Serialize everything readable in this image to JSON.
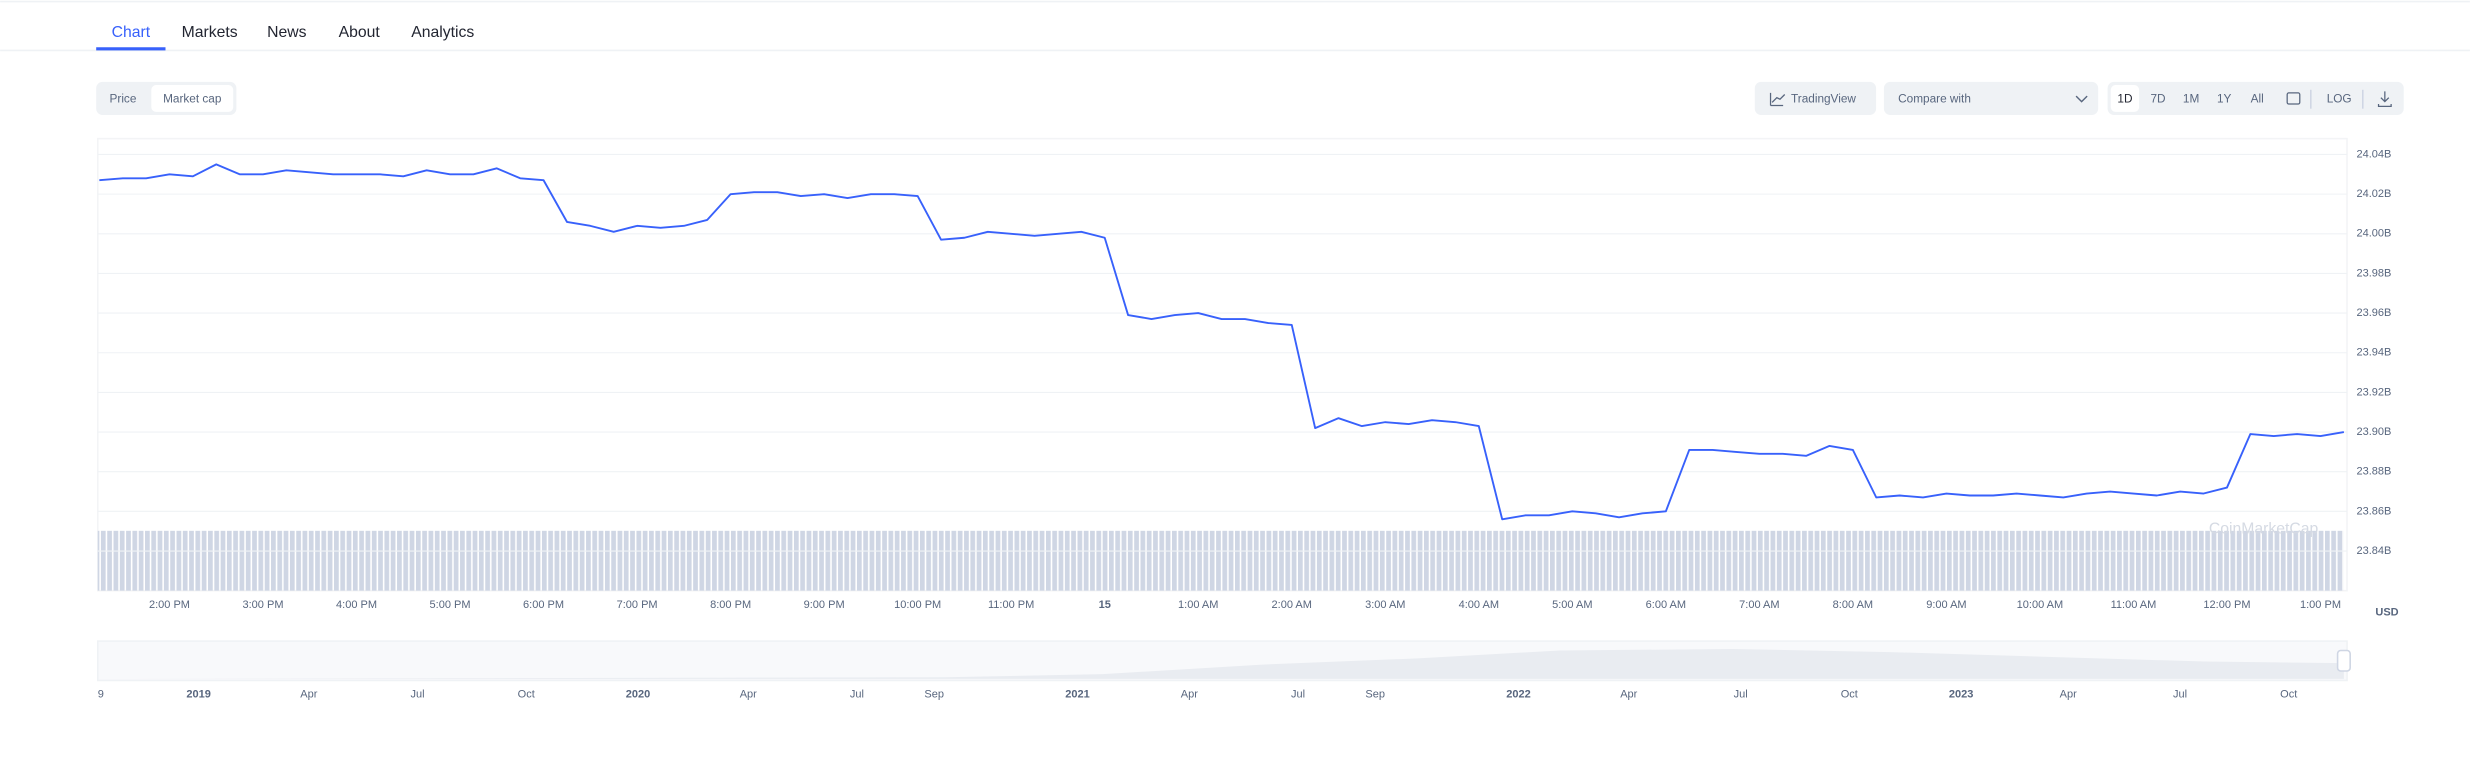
{
  "tabs": [
    "Chart",
    "Markets",
    "News",
    "About",
    "Analytics"
  ],
  "toggle": [
    "Price",
    "Market cap"
  ],
  "controls": {
    "tradingview": "TradingView",
    "compare": "Compare with",
    "ranges": [
      "1D",
      "7D",
      "1M",
      "1Y",
      "All"
    ],
    "log": "LOG"
  },
  "chart_data": {
    "type": "line",
    "categories": [
      null,
      null,
      null,
      "2:00 PM",
      null,
      null,
      null,
      "3:00 PM",
      null,
      null,
      null,
      "4:00 PM",
      null,
      null,
      null,
      "5:00 PM",
      null,
      null,
      null,
      "6:00 PM",
      null,
      null,
      null,
      "7:00 PM",
      null,
      null,
      null,
      "8:00 PM",
      null,
      null,
      null,
      "9:00 PM",
      null,
      null,
      null,
      "10:00 PM",
      null,
      null,
      null,
      "11:00 PM",
      null,
      null,
      null,
      "15",
      null,
      null,
      null,
      "1:00 AM",
      null,
      null,
      null,
      "2:00 AM",
      null,
      null,
      null,
      "3:00 AM",
      null,
      null,
      null,
      "4:00 AM",
      null,
      null,
      null,
      "5:00 AM",
      null,
      null,
      null,
      "6:00 AM",
      null,
      null,
      null,
      "7:00 AM",
      null,
      null,
      null,
      "8:00 AM",
      null,
      null,
      null,
      "9:00 AM",
      null,
      null,
      null,
      "10:00 AM",
      null,
      null,
      null,
      "11:00 AM",
      null,
      null,
      null,
      "12:00 PM",
      null,
      null,
      null,
      "1:00 PM",
      null
    ],
    "values": [
      24.027,
      24.028,
      24.028,
      24.03,
      24.029,
      24.035,
      24.03,
      24.03,
      24.032,
      24.031,
      24.03,
      24.03,
      24.03,
      24.029,
      24.032,
      24.03,
      24.03,
      24.033,
      24.028,
      24.027,
      24.006,
      24.004,
      24.001,
      24.004,
      24.003,
      24.004,
      24.007,
      24.02,
      24.021,
      24.021,
      24.019,
      24.02,
      24.018,
      24.02,
      24.02,
      24.019,
      23.997,
      23.998,
      24.001,
      24.0,
      23.999,
      24.0,
      24.001,
      23.998,
      23.959,
      23.957,
      23.959,
      23.96,
      23.957,
      23.957,
      23.955,
      23.954,
      23.902,
      23.907,
      23.903,
      23.905,
      23.904,
      23.906,
      23.905,
      23.903,
      23.856,
      23.858,
      23.858,
      23.86,
      23.859,
      23.857,
      23.859,
      23.86,
      23.891,
      23.891,
      23.89,
      23.889,
      23.889,
      23.888,
      23.893,
      23.891,
      23.867,
      23.868,
      23.867,
      23.869,
      23.868,
      23.868,
      23.869,
      23.868,
      23.867,
      23.869,
      23.87,
      23.869,
      23.868,
      23.87,
      23.869,
      23.872,
      23.899,
      23.898,
      23.899,
      23.898,
      23.9
    ],
    "color": "#3861fb",
    "ylim": [
      23.82,
      24.048
    ],
    "yticks": [
      {
        "value": 24.04,
        "label": "24.04B"
      },
      {
        "value": 24.02,
        "label": "24.02B"
      },
      {
        "value": 24.0,
        "label": "24.00B"
      },
      {
        "value": 23.98,
        "label": "23.98B"
      },
      {
        "value": 23.96,
        "label": "23.96B"
      },
      {
        "value": 23.94,
        "label": "23.94B"
      },
      {
        "value": 23.92,
        "label": "23.92B"
      },
      {
        "value": 23.9,
        "label": "23.90B"
      },
      {
        "value": 23.88,
        "label": "23.88B"
      },
      {
        "value": 23.86,
        "label": "23.86B"
      },
      {
        "value": 23.84,
        "label": "23.84B"
      }
    ],
    "grid": true,
    "y_unit": "USD",
    "watermark": "CoinMarketCap"
  },
  "navigator": {
    "labels": [
      "9",
      "2019",
      "Apr",
      "Jul",
      "Oct",
      "2020",
      "Apr",
      "Jul",
      "Sep",
      "2021",
      "Apr",
      "Jul",
      "Sep",
      "2022",
      "Apr",
      "Jul",
      "Oct",
      "2023",
      "Apr",
      "Jul",
      "Oct"
    ]
  }
}
